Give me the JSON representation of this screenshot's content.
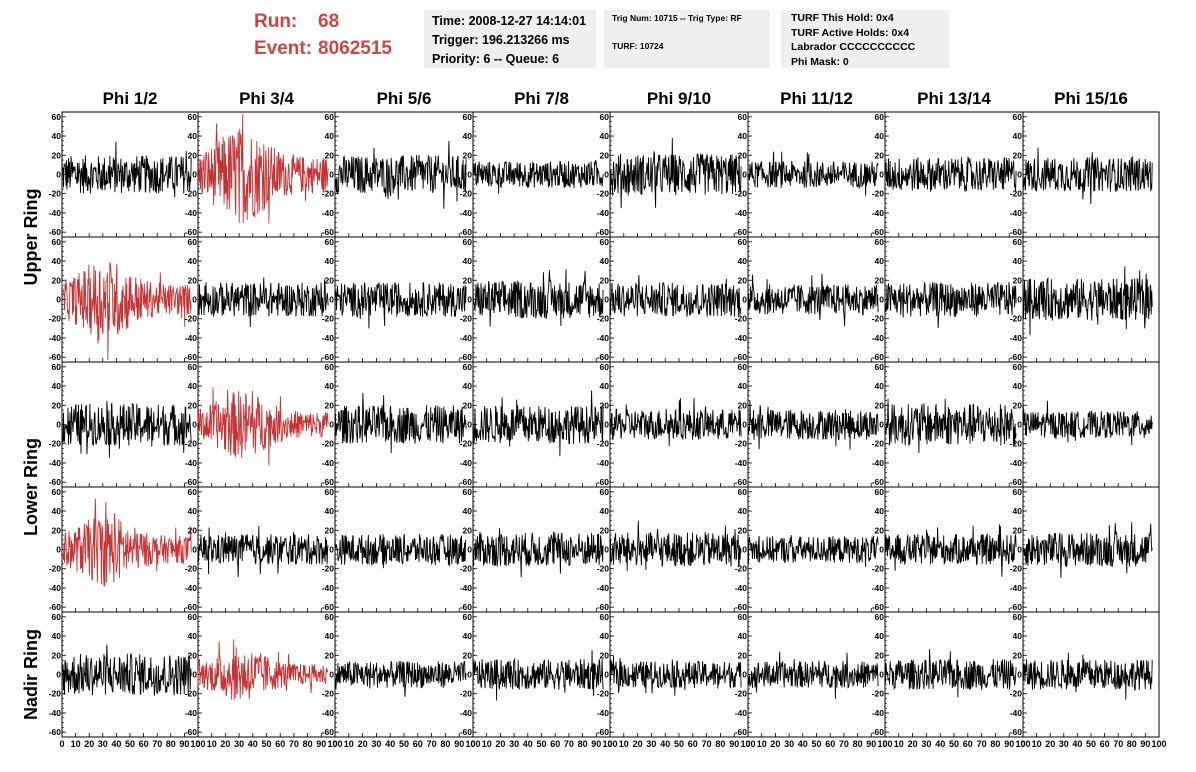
{
  "header": {
    "run_label": "Run:",
    "run_value": "68",
    "event_label": "Event:",
    "event_value": "8062515",
    "accent_color": "#cc4444",
    "time_line": "Time: 2008-12-27 14:14:01",
    "trigger_line": "Trigger: 196.213266 ms",
    "priority_line": "Priority: 6 -- Queue: 6",
    "trig_num_line": "Trig Num: 10715 -- Trig Type: RF",
    "turf_line": "TURF: 10724",
    "turf_this_hold": "TURF This Hold: 0x4",
    "turf_active_holds": "TURF Active Holds: 0x4",
    "labrador": "Labrador CCCCCCCCCC",
    "phi_mask": "Phi Mask: 0"
  },
  "chart_data": {
    "type": "line",
    "columns": [
      "Phi 1/2",
      "Phi 3/4",
      "Phi 5/6",
      "Phi 7/8",
      "Phi 9/10",
      "Phi 11/12",
      "Phi 13/14",
      "Phi 15/16"
    ],
    "row_groups": [
      "Upper Ring",
      "Lower Ring",
      "Nadir Ring"
    ],
    "rows": 5,
    "xlim": [
      0,
      100
    ],
    "ylim": [
      -65,
      65
    ],
    "x_tick_labels": [
      "0",
      "10",
      "20",
      "30",
      "40",
      "50",
      "60",
      "70",
      "80",
      "90",
      "100"
    ],
    "y_tick_labels": [
      "-60",
      "-40",
      "-20",
      "0",
      "20",
      "40",
      "60"
    ],
    "trace_color": "#000000",
    "highlight_color": "#c83232",
    "highlighted_panels": [
      [
        0,
        1
      ],
      [
        1,
        0
      ],
      [
        2,
        1
      ],
      [
        3,
        0
      ],
      [
        4,
        1
      ]
    ],
    "panel_amplitudes": [
      [
        20,
        35,
        20,
        14,
        22,
        14,
        18,
        18
      ],
      [
        30,
        18,
        18,
        20,
        18,
        16,
        18,
        22
      ],
      [
        22,
        25,
        20,
        20,
        16,
        16,
        22,
        14
      ],
      [
        26,
        16,
        16,
        18,
        18,
        14,
        16,
        18
      ],
      [
        22,
        20,
        14,
        16,
        14,
        14,
        16,
        16
      ]
    ],
    "samples_per_trace": 260,
    "x_range_of_trace": [
      0,
      95
    ]
  }
}
